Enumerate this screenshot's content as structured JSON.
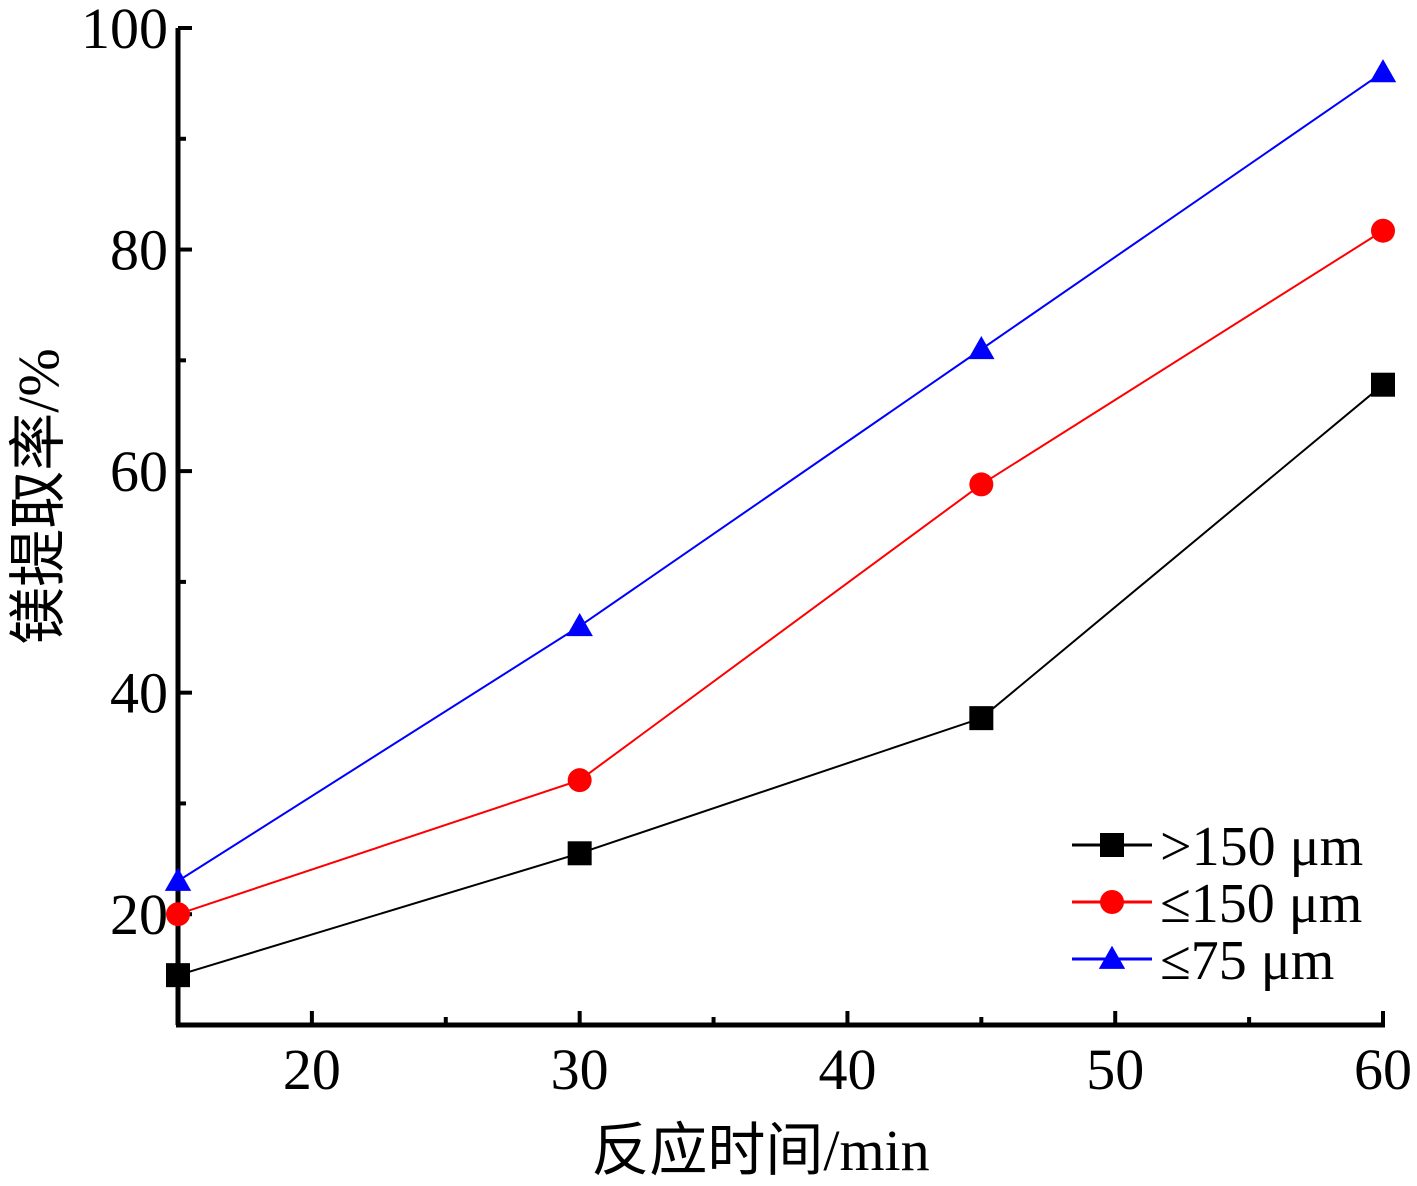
{
  "chart_data": {
    "type": "line",
    "xlabel": "反应时间/min",
    "ylabel": "镁提取率/%",
    "xlim": [
      15,
      60
    ],
    "ylim": [
      10,
      100
    ],
    "xticks": [
      20,
      30,
      40,
      50,
      60
    ],
    "yticks": [
      20,
      40,
      60,
      80,
      100
    ],
    "x": [
      15,
      30,
      45,
      60
    ],
    "series": [
      {
        "name": ">150 μm",
        "values": [
          14.5,
          25.5,
          37.7,
          67.8
        ],
        "color": "#000000",
        "marker": "square"
      },
      {
        "name": "≤150 μm",
        "values": [
          20.0,
          32.1,
          58.8,
          81.7
        ],
        "color": "#ff0000",
        "marker": "circle"
      },
      {
        "name": "≤75 μm",
        "values": [
          23.0,
          46.0,
          71.0,
          96.0
        ],
        "color": "#0000ff",
        "marker": "triangle"
      }
    ],
    "legend_position": "bottom-right",
    "grid": false
  }
}
